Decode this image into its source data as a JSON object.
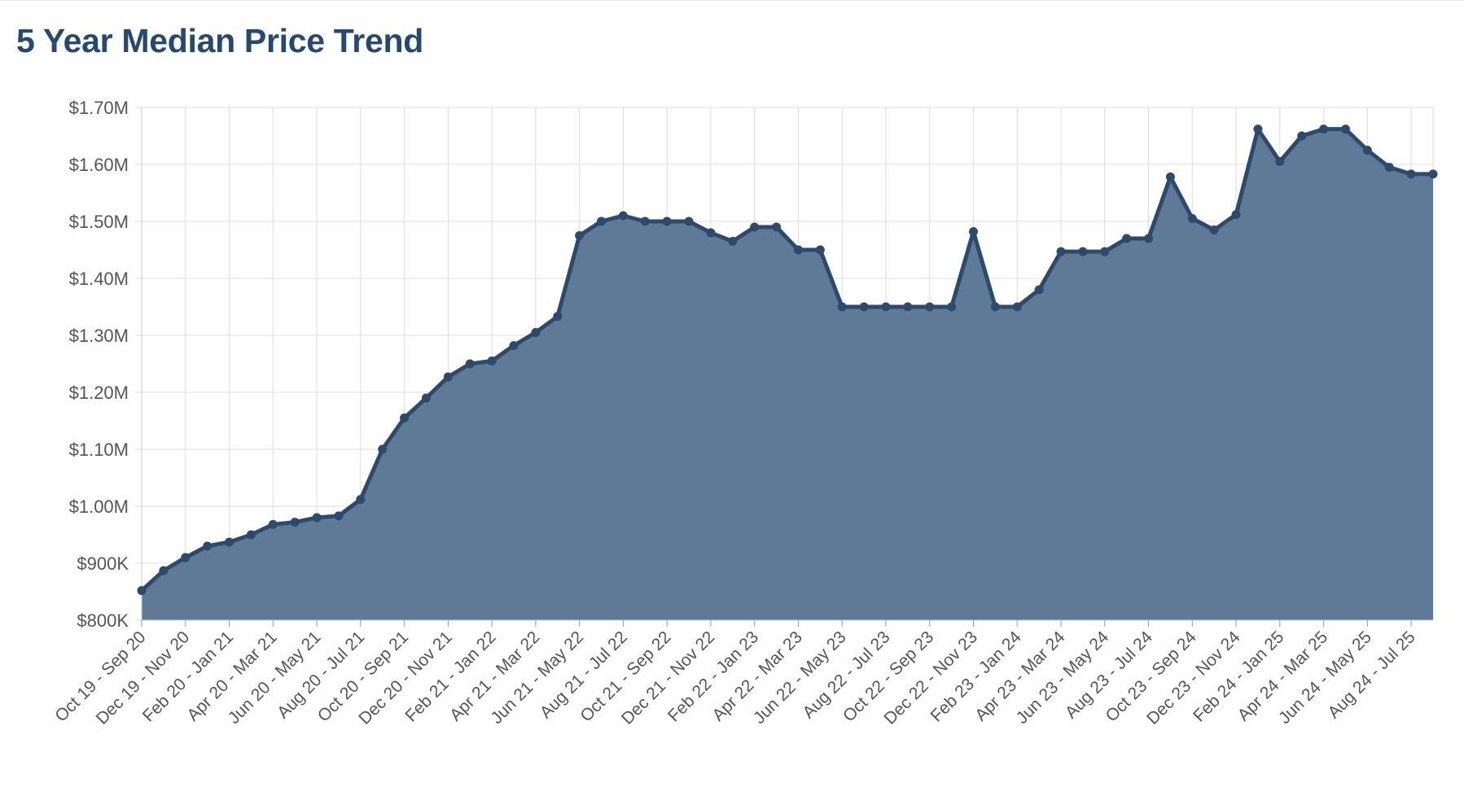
{
  "chart_data": {
    "type": "area",
    "title": "5 Year Median Price Trend",
    "xlabel": "",
    "ylabel": "",
    "ylim": [
      800000,
      1700000
    ],
    "y_ticks": [
      800000,
      900000,
      1000000,
      1100000,
      1200000,
      1300000,
      1400000,
      1500000,
      1600000,
      1700000
    ],
    "y_tick_labels": [
      "$800K",
      "$900K",
      "$1.00M",
      "$1.10M",
      "$1.20M",
      "$1.30M",
      "$1.40M",
      "$1.50M",
      "$1.60M",
      "$1.70M"
    ],
    "x_tick_labels": [
      "Oct 19 - Sep 20",
      "Dec 19 - Nov 20",
      "Feb 20 - Jan 21",
      "Apr 20 - Mar 21",
      "Jun 20 - May 21",
      "Aug 20 - Jul 21",
      "Oct 20 - Sep 21",
      "Dec 20 - Nov 21",
      "Feb 21 - Jan 22",
      "Apr 21 - Mar 22",
      "Jun 21 - May 22",
      "Aug 21 - Jul 22",
      "Oct 21 - Sep 22",
      "Dec 21 - Nov 22",
      "Feb 22 - Jan 23",
      "Apr 22 - Mar 23",
      "Jun 22 - May 23",
      "Aug 22 - Jul 23",
      "Oct 22 - Sep 23",
      "Dec 22 - Nov 23",
      "Feb 23 - Jan 24",
      "Apr 23 - Mar 24",
      "Jun 23 - May 24",
      "Aug 23 - Jul 24",
      "Oct 23 - Sep 24",
      "Dec 23 - Nov 24",
      "Feb 24 - Jan 25",
      "Apr 24 - Mar 25",
      "Jun 24 - May 25",
      "Aug 24 - Jul 25"
    ],
    "x_tick_every": 2,
    "series": [
      {
        "values": [
          852000,
          887000,
          910000,
          930000,
          937000,
          950000,
          968000,
          972000,
          980000,
          983000,
          1012000,
          1100000,
          1155000,
          1190000,
          1227000,
          1250000,
          1255000,
          1282000,
          1305000,
          1333000,
          1475000,
          1500000,
          1510000,
          1500000,
          1500000,
          1500000,
          1480000,
          1465000,
          1490000,
          1490000,
          1450000,
          1450000,
          1350000,
          1350000,
          1350000,
          1350000,
          1350000,
          1350000,
          1482000,
          1350000,
          1350000,
          1380000,
          1447000,
          1447000,
          1447000,
          1470000,
          1470000,
          1578000,
          1505000,
          1485000,
          1512000,
          1662000,
          1605000,
          1650000,
          1662000,
          1662000,
          1625000,
          1595000,
          1583000,
          1583000
        ]
      }
    ],
    "grid": true,
    "legend": "none",
    "colors": {
      "line": "#2c4a6e",
      "fill": "#5f7a96",
      "grid": "#dddddd",
      "title": "#244a73",
      "text": "#555555"
    }
  }
}
